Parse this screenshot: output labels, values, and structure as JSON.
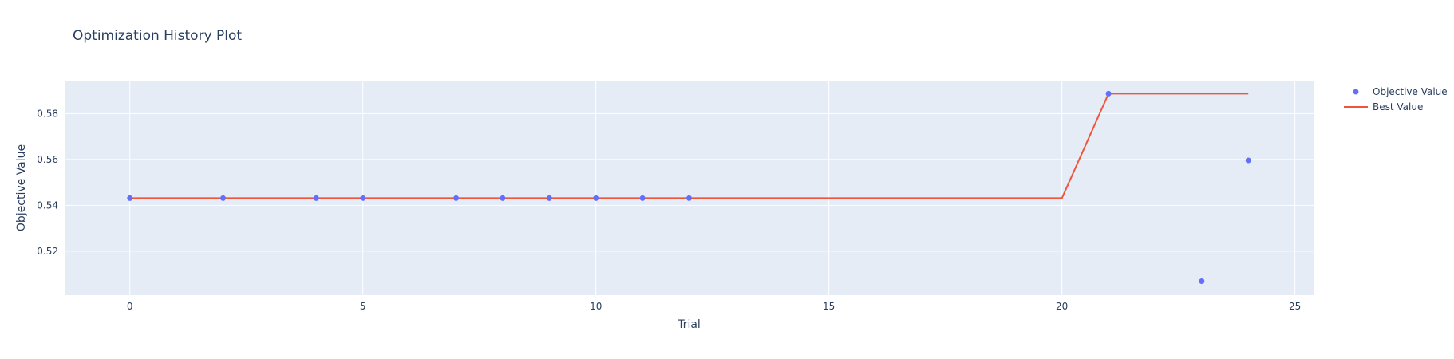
{
  "chart_data": {
    "type": "scatter",
    "title": "Optimization History Plot",
    "xlabel": "Trial",
    "ylabel": "Objective Value",
    "xlim": [
      -1.4,
      25.4
    ],
    "ylim": [
      0.5008,
      0.5944
    ],
    "xticks": [
      0,
      5,
      10,
      15,
      20,
      25
    ],
    "yticks": [
      0.52,
      0.54,
      0.56,
      0.58
    ],
    "ytick_labels": [
      "0.52",
      "0.54",
      "0.56",
      "0.58"
    ],
    "grid": true,
    "legend_position": "top-right",
    "series": [
      {
        "name": "Objective Value",
        "mode": "markers",
        "color": "#636efa",
        "x": [
          0,
          2,
          4,
          5,
          7,
          8,
          9,
          10,
          11,
          12,
          21,
          23,
          24
        ],
        "y": [
          0.5431,
          0.5431,
          0.5431,
          0.5431,
          0.5431,
          0.5431,
          0.5431,
          0.5431,
          0.5431,
          0.5431,
          0.5887,
          0.5069,
          0.5596
        ]
      },
      {
        "name": "Best Value",
        "mode": "lines",
        "color": "#ef553b",
        "x": [
          0,
          20,
          21,
          24
        ],
        "y": [
          0.5431,
          0.5431,
          0.5887,
          0.5887
        ]
      }
    ]
  }
}
